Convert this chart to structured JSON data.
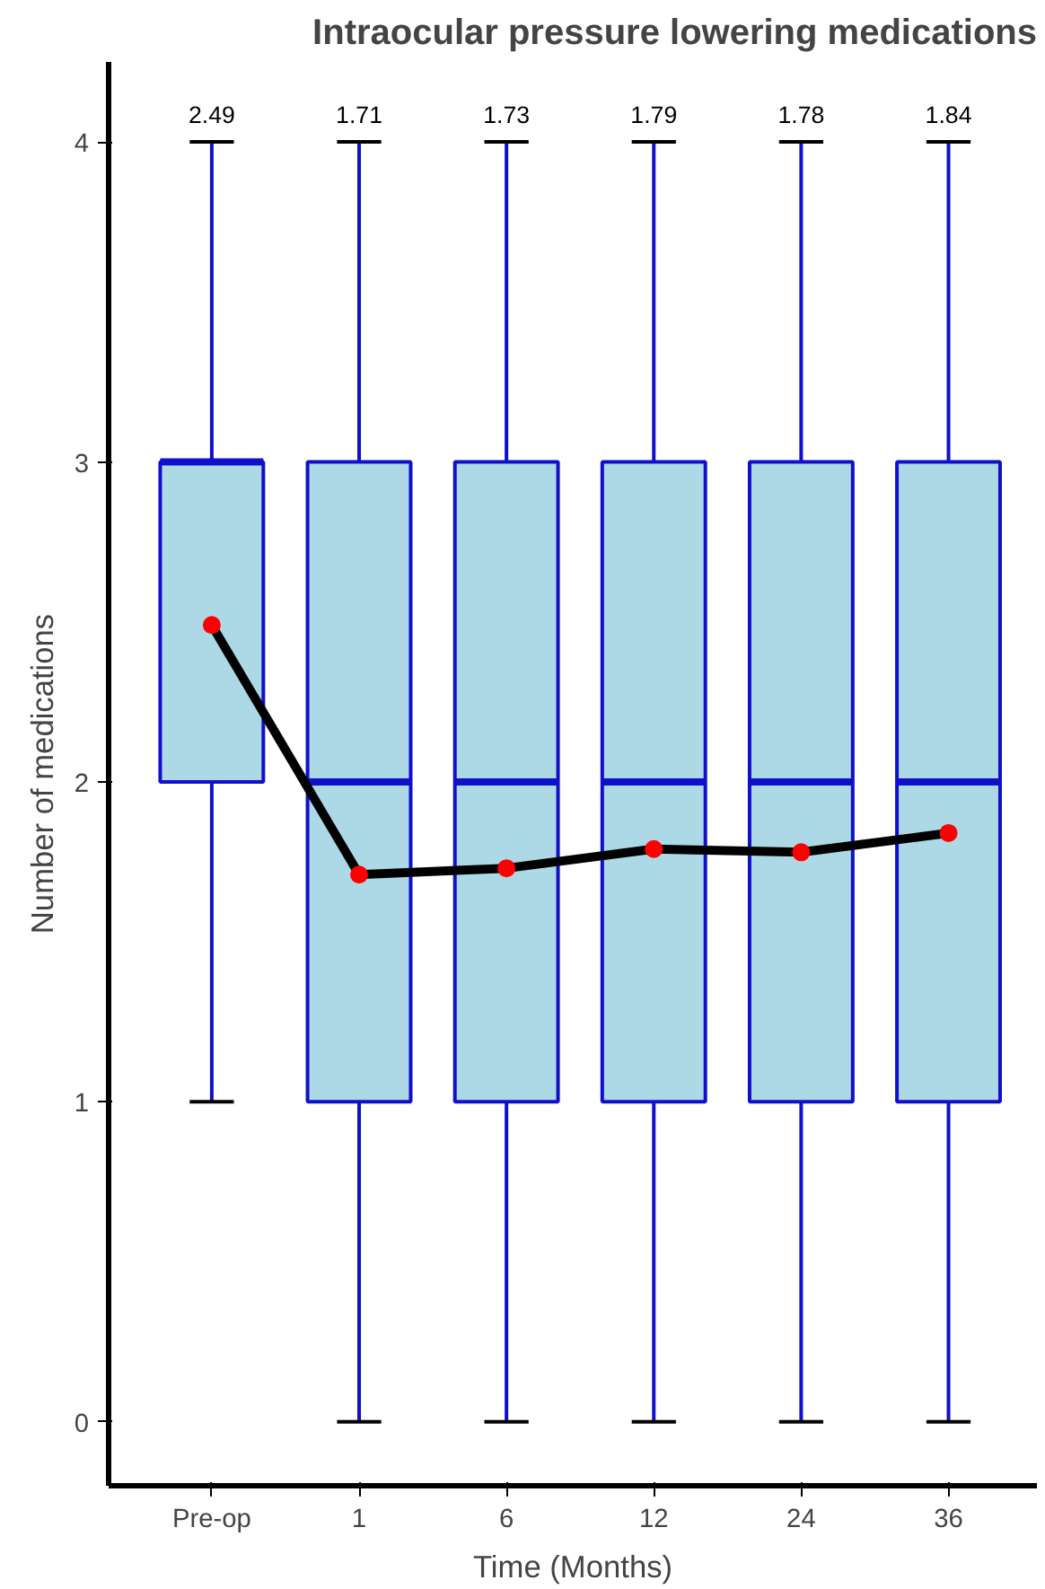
{
  "chart_data": {
    "type": "box",
    "title": "Intraocular pressure lowering medications",
    "xlabel": "Time (Months)",
    "ylabel": "Number of medications",
    "categories": [
      "Pre-op",
      "1",
      "6",
      "12",
      "24",
      "36"
    ],
    "ylim": [
      -0.2,
      4.25
    ],
    "yticks": [
      0,
      1,
      2,
      3,
      4
    ],
    "grid": false,
    "marker": "circle",
    "annotations": [
      "2.49",
      "1.71",
      "1.73",
      "1.79",
      "1.78",
      "1.84"
    ],
    "series": [
      {
        "color": "#add8e6",
        "boxes": [
          {
            "low": 1,
            "q1": 2,
            "median": 3,
            "q3": 3,
            "high": 4
          },
          {
            "low": 0,
            "q1": 1,
            "median": 2,
            "q3": 3,
            "high": 4
          },
          {
            "low": 0,
            "q1": 1,
            "median": 2,
            "q3": 3,
            "high": 4
          },
          {
            "low": 0,
            "q1": 1,
            "median": 2,
            "q3": 3,
            "high": 4
          },
          {
            "low": 0,
            "q1": 1,
            "median": 2,
            "q3": 3,
            "high": 4
          },
          {
            "low": 0,
            "q1": 1,
            "median": 2,
            "q3": 3,
            "high": 4
          }
        ]
      },
      {
        "type": "line",
        "color": "#000000",
        "values": [
          2.49,
          1.71,
          1.73,
          1.79,
          1.78,
          1.84
        ]
      }
    ]
  }
}
